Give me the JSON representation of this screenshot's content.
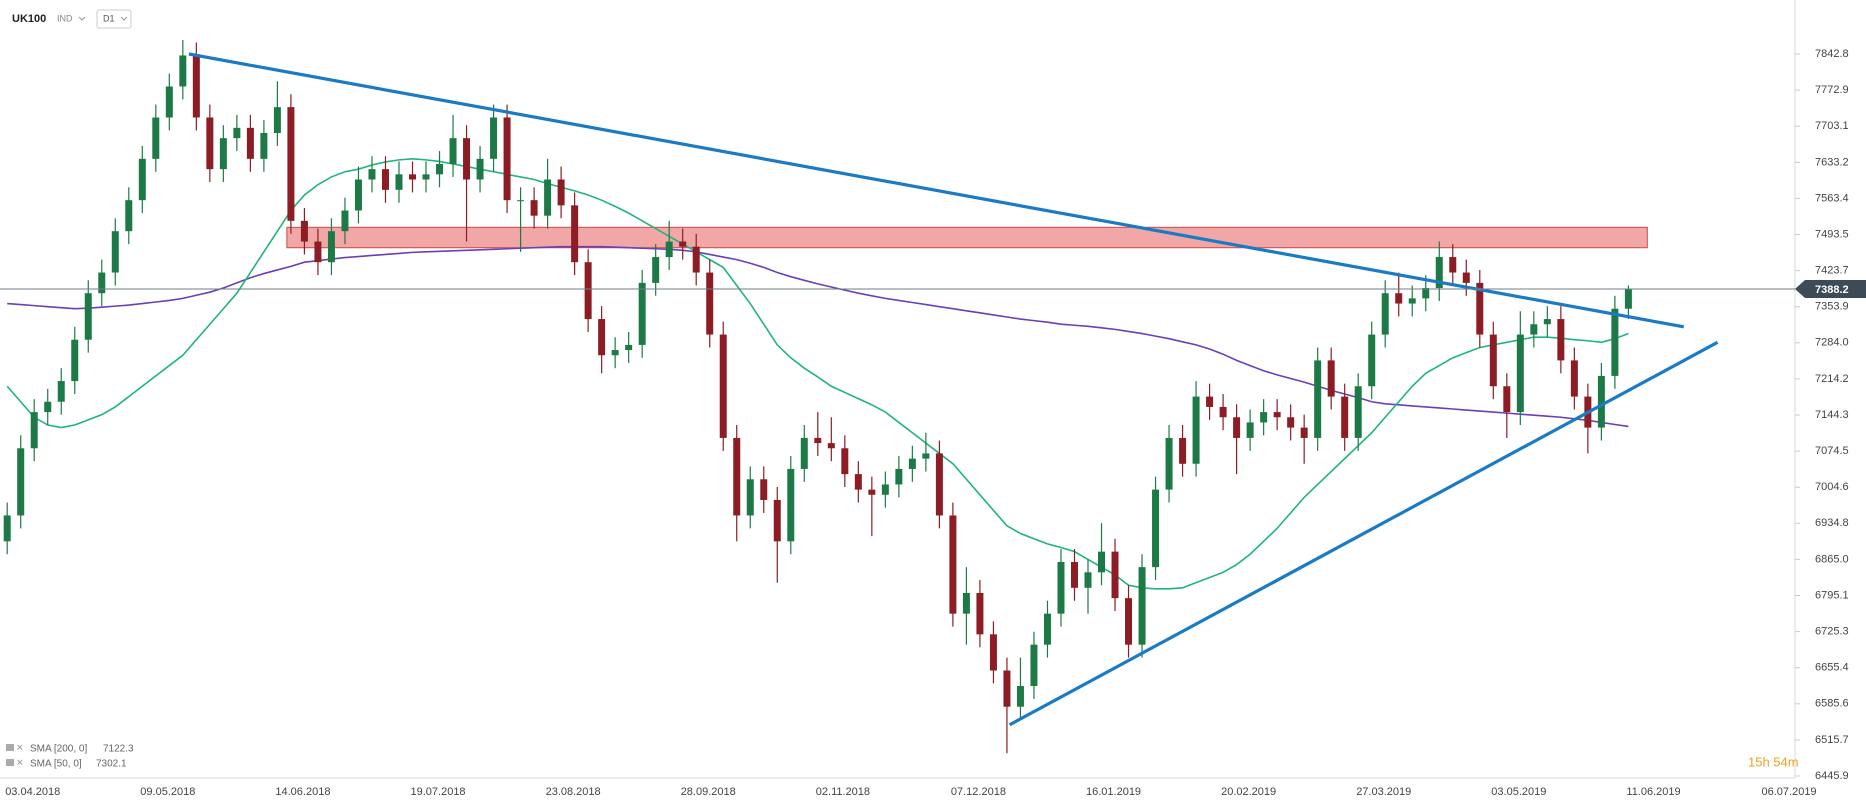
{
  "chart_data": {
    "type": "candlestick",
    "symbol": "UK100",
    "market": "IND",
    "timeframe": "D1",
    "categories": [
      "03.04.2018",
      null,
      null,
      null,
      null,
      null,
      null,
      null,
      null,
      null,
      "09.05.2018",
      null,
      null,
      null,
      null,
      null,
      null,
      null,
      null,
      null,
      "14.06.2018",
      null,
      null,
      null,
      null,
      null,
      null,
      null,
      null,
      null,
      "19.07.2018",
      null,
      null,
      null,
      null,
      null,
      null,
      null,
      null,
      null,
      "23.08.2018",
      null,
      null,
      null,
      null,
      null,
      null,
      null,
      null,
      null,
      "28.09.2018",
      null,
      null,
      null,
      null,
      null,
      null,
      null,
      null,
      null,
      "02.11.2018",
      null,
      null,
      null,
      null,
      null,
      null,
      null,
      null,
      null,
      "07.12.2018",
      null,
      null,
      null,
      null,
      null,
      null,
      null,
      null,
      null,
      "16.01.2019",
      null,
      null,
      null,
      null,
      null,
      null,
      null,
      null,
      null,
      "20.02.2019",
      null,
      null,
      null,
      null,
      null,
      null,
      null,
      null,
      null,
      "27.03.2019",
      null,
      null,
      null,
      null,
      null,
      null,
      null,
      null,
      null,
      "03.05.2019",
      null,
      null,
      null,
      null,
      null,
      null,
      null,
      null,
      null,
      "11.06.2019",
      null,
      null,
      null,
      null,
      null,
      null,
      null,
      null,
      null,
      "06.07.2019"
    ],
    "open": [
      6900,
      6950,
      7080,
      7150,
      7170,
      7210,
      7290,
      7380,
      7420,
      7500,
      7560,
      7640,
      7720,
      7780,
      7840,
      7720,
      7620,
      7680,
      7700,
      7640,
      7690,
      7740,
      7520,
      7480,
      7440,
      7500,
      7540,
      7600,
      7620,
      7580,
      7610,
      7600,
      7610,
      7630,
      7680,
      7600,
      7640,
      7720,
      7560,
      7560,
      7530,
      7600,
      7550,
      7440,
      7330,
      7260,
      7270,
      7280,
      7400,
      7450,
      7480,
      7470,
      7420,
      7300,
      7100,
      6950,
      7020,
      6980,
      6900,
      7040,
      7100,
      7090,
      7080,
      7030,
      7000,
      6990,
      7010,
      7040,
      7060,
      7070,
      6950,
      6760,
      6800,
      6720,
      6650,
      6580,
      6620,
      6700,
      6760,
      6860,
      6810,
      6840,
      6880,
      6790,
      6700,
      6850,
      7000,
      7100,
      7050,
      7180,
      7160,
      7140,
      7100,
      7130,
      7150,
      7140,
      7120,
      7100,
      7250,
      7180,
      7100,
      7200,
      7300,
      7380,
      7360,
      7370,
      7390,
      7450,
      7420,
      7400,
      7300,
      7200,
      7150,
      7300,
      7320,
      7330,
      7250,
      7180,
      7120,
      7220,
      7350,
      null,
      null,
      null,
      null,
      null,
      null,
      null,
      null,
      null,
      null
    ],
    "high": [
      6975,
      7105,
      7175,
      7195,
      7235,
      7315,
      7405,
      7445,
      7525,
      7585,
      7665,
      7745,
      7805,
      7870,
      7865,
      7745,
      7705,
      7725,
      7725,
      7715,
      7790,
      7765,
      7545,
      7505,
      7525,
      7565,
      7625,
      7645,
      7645,
      7635,
      7635,
      7635,
      7655,
      7725,
      7705,
      7665,
      7745,
      7745,
      7585,
      7585,
      7640,
      7625,
      7575,
      7465,
      7355,
      7295,
      7305,
      7425,
      7475,
      7520,
      7505,
      7495,
      7445,
      7325,
      7125,
      7045,
      7045,
      7005,
      7065,
      7125,
      7150,
      7140,
      7105,
      7055,
      7025,
      7035,
      7065,
      7085,
      7110,
      7095,
      6975,
      6850,
      6825,
      6745,
      6675,
      6675,
      6725,
      6785,
      6885,
      6885,
      6865,
      6935,
      6905,
      6815,
      6875,
      7025,
      7125,
      7125,
      7210,
      7205,
      7185,
      7165,
      7155,
      7175,
      7175,
      7165,
      7145,
      7275,
      7275,
      7205,
      7225,
      7325,
      7405,
      7420,
      7395,
      7415,
      7480,
      7475,
      7445,
      7425,
      7325,
      7225,
      7345,
      7345,
      7355,
      7355,
      7275,
      7205,
      7245,
      7375,
      7395,
      null,
      null,
      null,
      null,
      null,
      null,
      null,
      null,
      null,
      null
    ],
    "low": [
      6875,
      6925,
      7055,
      7125,
      7145,
      7185,
      7265,
      7355,
      7395,
      7475,
      7535,
      7615,
      7695,
      7755,
      7695,
      7595,
      7595,
      7655,
      7615,
      7615,
      7665,
      7495,
      7455,
      7415,
      7415,
      7475,
      7515,
      7575,
      7555,
      7555,
      7575,
      7575,
      7585,
      7605,
      7480,
      7575,
      7615,
      7535,
      7460,
      7505,
      7505,
      7525,
      7415,
      7305,
      7225,
      7235,
      7245,
      7255,
      7375,
      7425,
      7445,
      7395,
      7275,
      7075,
      6900,
      6925,
      6955,
      6820,
      6875,
      7015,
      7065,
      7055,
      7005,
      6975,
      6910,
      6965,
      6985,
      7015,
      7035,
      6925,
      6735,
      6700,
      6695,
      6625,
      6490,
      6555,
      6595,
      6675,
      6735,
      6785,
      6760,
      6815,
      6765,
      6675,
      6675,
      6825,
      6975,
      7025,
      7025,
      7135,
      7115,
      7030,
      7075,
      7105,
      7115,
      7095,
      7050,
      7075,
      7155,
      7075,
      7075,
      7175,
      7275,
      7335,
      7335,
      7345,
      7365,
      7395,
      7375,
      7275,
      7175,
      7100,
      7125,
      7275,
      7295,
      7225,
      7155,
      7070,
      7095,
      7195,
      7330,
      null,
      null,
      null,
      null,
      null,
      null,
      null,
      null,
      null,
      null
    ],
    "close": [
      6950,
      7080,
      7150,
      7170,
      7210,
      7290,
      7380,
      7420,
      7500,
      7560,
      7640,
      7720,
      7780,
      7840,
      7720,
      7620,
      7680,
      7700,
      7640,
      7690,
      7740,
      7520,
      7480,
      7440,
      7500,
      7540,
      7600,
      7620,
      7580,
      7610,
      7600,
      7610,
      7630,
      7680,
      7600,
      7640,
      7720,
      7560,
      7560,
      7530,
      7600,
      7550,
      7440,
      7330,
      7260,
      7270,
      7280,
      7400,
      7450,
      7480,
      7470,
      7420,
      7300,
      7100,
      6950,
      7020,
      6980,
      6900,
      7040,
      7100,
      7090,
      7080,
      7030,
      7000,
      6990,
      7010,
      7040,
      7060,
      7070,
      6950,
      6760,
      6800,
      6720,
      6650,
      6580,
      6620,
      6700,
      6760,
      6860,
      6810,
      6840,
      6880,
      6790,
      6700,
      6850,
      7000,
      7100,
      7050,
      7180,
      7160,
      7140,
      7100,
      7130,
      7150,
      7140,
      7120,
      7100,
      7250,
      7180,
      7100,
      7200,
      7300,
      7380,
      7360,
      7370,
      7390,
      7450,
      7420,
      7400,
      7300,
      7200,
      7150,
      7300,
      7320,
      7330,
      7250,
      7180,
      7120,
      7220,
      7350,
      7388.2,
      null,
      null,
      null,
      null,
      null,
      null,
      null,
      null,
      null,
      null
    ],
    "up_color": "#1d7a47",
    "down_color": "#8c1d25",
    "series": [
      {
        "name": "SMA [200, 0]",
        "color": "#6a3fb8",
        "values": [
          7360,
          7358,
          7356,
          7354,
          7352,
          7350,
          7351,
          7353,
          7355,
          7357,
          7360,
          7363,
          7366,
          7370,
          7376,
          7382,
          7390,
          7400,
          7410,
          7418,
          7425,
          7432,
          7440,
          7443,
          7446,
          7449,
          7451,
          7453,
          7455,
          7457,
          7459,
          7460,
          7461,
          7462,
          7463,
          7464,
          7465,
          7466,
          7467,
          7468,
          7469,
          7470,
          7470,
          7470,
          7470,
          7469,
          7468,
          7467,
          7466,
          7465,
          7463,
          7460,
          7455,
          7450,
          7445,
          7438,
          7430,
          7420,
          7412,
          7405,
          7398,
          7392,
          7386,
          7380,
          7375,
          7370,
          7366,
          7362,
          7358,
          7354,
          7350,
          7346,
          7342,
          7338,
          7334,
          7330,
          7327,
          7324,
          7320,
          7318,
          7316,
          7313,
          7310,
          7306,
          7302,
          7297,
          7292,
          7286,
          7280,
          7272,
          7262,
          7250,
          7240,
          7230,
          7222,
          7215,
          7208,
          7200,
          7192,
          7185,
          7178,
          7170,
          7166,
          7164,
          7162,
          7160,
          7158,
          7156,
          7154,
          7152,
          7150,
          7148,
          7146,
          7144,
          7142,
          7140,
          7137,
          7134,
          7130,
          7126,
          7122.3,
          null,
          null,
          null,
          null,
          null,
          null,
          null,
          null,
          null,
          null
        ]
      },
      {
        "name": "SMA [50, 0]",
        "color": "#1fb57c",
        "values": [
          7200,
          7170,
          7140,
          7125,
          7120,
          7125,
          7135,
          7145,
          7160,
          7180,
          7200,
          7220,
          7240,
          7260,
          7290,
          7320,
          7350,
          7380,
          7420,
          7460,
          7500,
          7540,
          7570,
          7590,
          7605,
          7615,
          7620,
          7628,
          7634,
          7638,
          7640,
          7638,
          7635,
          7630,
          7625,
          7620,
          7615,
          7610,
          7605,
          7600,
          7592,
          7585,
          7578,
          7570,
          7560,
          7548,
          7535,
          7520,
          7505,
          7490,
          7475,
          7460,
          7445,
          7430,
          7395,
          7360,
          7320,
          7280,
          7255,
          7235,
          7218,
          7200,
          7188,
          7176,
          7164,
          7150,
          7130,
          7110,
          7090,
          7070,
          7050,
          7020,
          6990,
          6960,
          6930,
          6915,
          6905,
          6895,
          6888,
          6880,
          6865,
          6850,
          6835,
          6815,
          6810,
          6808,
          6808,
          6810,
          6820,
          6830,
          6840,
          6855,
          6875,
          6900,
          6925,
          6955,
          6985,
          7010,
          7035,
          7060,
          7085,
          7110,
          7140,
          7170,
          7200,
          7225,
          7240,
          7255,
          7265,
          7275,
          7280,
          7285,
          7290,
          7295,
          7295,
          7293,
          7290,
          7288,
          7285,
          7292,
          7302.1,
          null,
          null,
          null,
          null,
          null,
          null,
          null,
          null,
          null,
          null
        ]
      }
    ],
    "trendlines": [
      {
        "start": [
          13.45,
          7842.8
        ],
        "end": [
          124.1,
          7315
        ],
        "color": "#1a7bc4"
      },
      {
        "start": [
          74.2,
          6545
        ],
        "end": [
          126.6,
          7285
        ],
        "color": "#1a7bc4"
      }
    ],
    "zones": [
      {
        "x": [
          20.7,
          121.4
        ],
        "y": [
          7468,
          7507.5
        ],
        "color": "#ee8a8a"
      }
    ],
    "ylim": [
      6428.5,
      7947.3
    ],
    "yticks": [
      7842.8,
      7772.9,
      7703.1,
      7633.2,
      7563.4,
      7493.5,
      7423.7,
      7353.9,
      {
        "value": 7284,
        "label": "7284.0"
      },
      7214.2,
      7144.3,
      7074.5,
      7004.6,
      6934.8,
      {
        "value": 6865,
        "label": "6865.0"
      },
      6795.1,
      6725.3,
      6655.4,
      6585.6,
      6515.7,
      6445.9
    ],
    "countdown": "15h 54m"
  }
}
